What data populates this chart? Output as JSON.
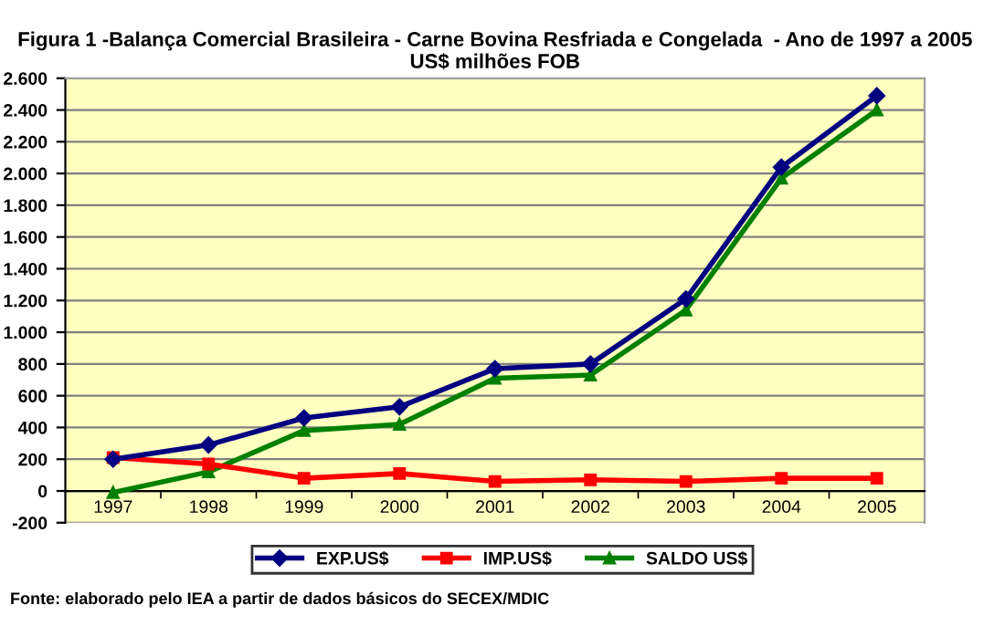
{
  "chart_data": {
    "type": "line",
    "title": "Figura 1 -Balança Comercial Brasileira - Carne Bovina Resfriada e Congelada  - Ano de 1997 a 2005\nUS$ milhões FOB",
    "categories": [
      "1997",
      "1998",
      "1999",
      "2000",
      "2001",
      "2002",
      "2003",
      "2004",
      "2005"
    ],
    "series": [
      {
        "name": "EXP.US$",
        "color": "#000080",
        "marker": "diamond",
        "values": [
          200,
          290,
          460,
          530,
          770,
          800,
          1210,
          2040,
          2490
        ]
      },
      {
        "name": "IMP.US$",
        "color": "#ff0000",
        "marker": "square",
        "values": [
          210,
          170,
          80,
          110,
          60,
          70,
          60,
          80,
          80
        ]
      },
      {
        "name": "SALDO US$",
        "color": "#008000",
        "marker": "triangle",
        "values": [
          -10,
          120,
          380,
          420,
          710,
          730,
          1140,
          1970,
          2400
        ]
      }
    ],
    "ylim": [
      -200,
      2600
    ],
    "yticks": [
      {
        "value": -200,
        "label": "-200"
      },
      0,
      200,
      400,
      600,
      800,
      {
        "value": 1000,
        "label": "1.000"
      },
      {
        "value": 1200,
        "label": "1.200"
      },
      {
        "value": 1400,
        "label": "1.400"
      },
      {
        "value": 1600,
        "label": "1.600"
      },
      {
        "value": 1800,
        "label": "1.800"
      },
      {
        "value": 2000,
        "label": "2.000"
      },
      {
        "value": 2200,
        "label": "2.200"
      },
      {
        "value": 2400,
        "label": "2.400"
      },
      {
        "value": 2600,
        "label": "2.600"
      }
    ],
    "grid": "y",
    "legend": "bottom",
    "annotations": [
      "Fonte: elaborado pelo IEA a partir de dados básicos do SECEX/MDIC"
    ]
  }
}
